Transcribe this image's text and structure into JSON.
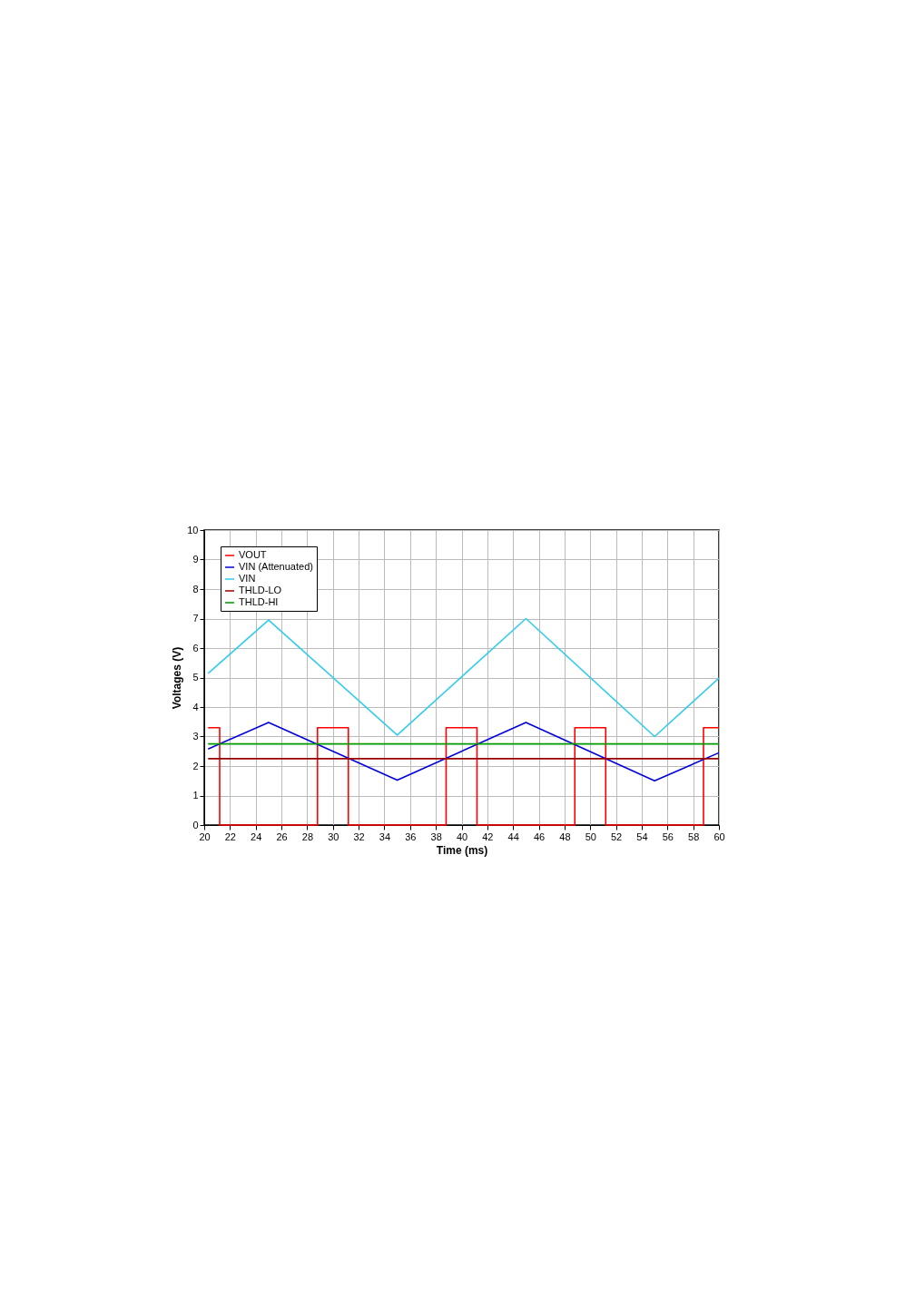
{
  "chart_data": {
    "type": "line",
    "xlabel": "Time (ms)",
    "ylabel": "Voltages (V)",
    "xlim": [
      20,
      60
    ],
    "ylim": [
      0,
      10
    ],
    "xticks": [
      20,
      22,
      24,
      26,
      28,
      30,
      32,
      34,
      36,
      38,
      40,
      42,
      44,
      46,
      48,
      50,
      52,
      54,
      56,
      58,
      60
    ],
    "yticks": [
      0,
      1,
      2,
      3,
      4,
      5,
      6,
      7,
      8,
      9,
      10
    ],
    "grid": true,
    "legend": "top left",
    "marker": "none",
    "line_style": "solid",
    "series": [
      {
        "name": "VOUT",
        "color": "#ff0000",
        "x": [
          20.3,
          21.2,
          21.2,
          28.8,
          28.8,
          31.2,
          31.2,
          38.8,
          38.8,
          41.2,
          41.2,
          48.8,
          48.8,
          51.2,
          51.2,
          58.8,
          58.8,
          60
        ],
        "values": [
          3.3,
          3.3,
          0,
          0,
          3.3,
          3.3,
          0,
          0,
          3.3,
          3.3,
          0,
          0,
          3.3,
          3.3,
          0,
          0,
          3.3,
          3.3
        ]
      },
      {
        "name": "VIN (Attenuated)",
        "color": "#0000dd",
        "x": [
          20.3,
          25,
          35,
          45,
          55,
          60
        ],
        "values": [
          2.58,
          3.48,
          1.52,
          3.48,
          1.5,
          2.45
        ]
      },
      {
        "name": "VIN",
        "color": "#33ccee",
        "x": [
          20.3,
          25,
          35,
          45,
          55,
          60
        ],
        "values": [
          5.14,
          6.95,
          3.05,
          7.0,
          3.0,
          4.98
        ]
      },
      {
        "name": "THLD-LO",
        "color": "#990000",
        "x": [
          20.3,
          60
        ],
        "values": [
          2.25,
          2.25
        ]
      },
      {
        "name": "THLD-HI",
        "color": "#009900",
        "x": [
          20.3,
          60
        ],
        "values": [
          2.75,
          2.75
        ]
      }
    ]
  }
}
